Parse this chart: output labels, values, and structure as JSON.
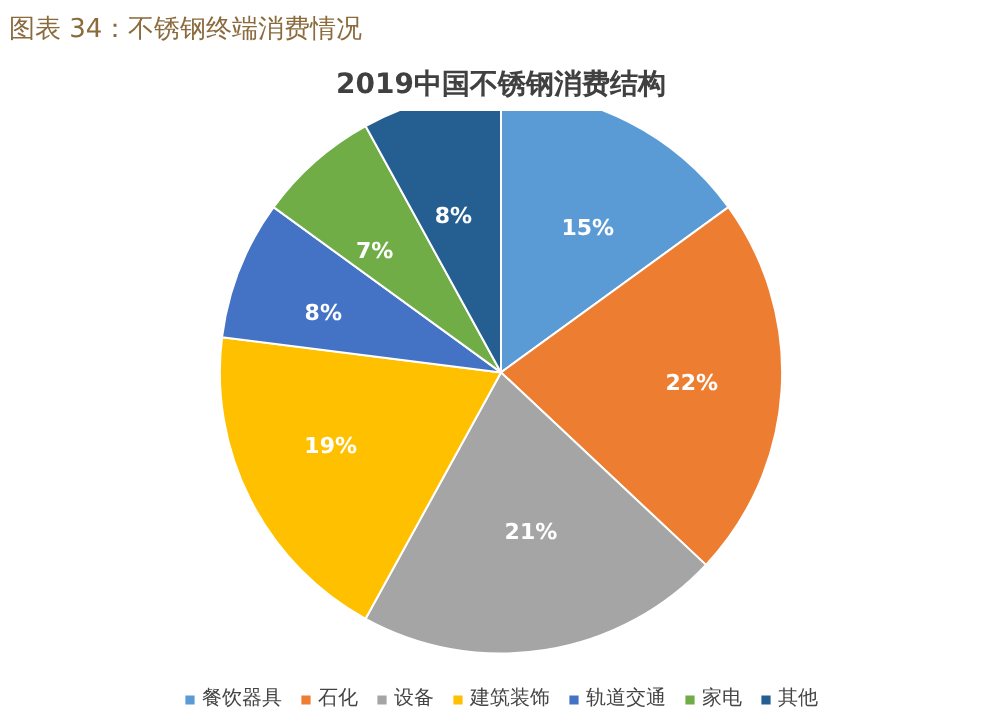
{
  "chart_data": {
    "type": "pie",
    "title": "图表 34：不锈钢终端消费情况",
    "subtitle": "2019中国不锈钢消费结构",
    "categories": [
      "餐饮器具",
      "石化",
      "设备",
      "建筑装饰",
      "轨道交通",
      "家电",
      "其他"
    ],
    "values": [
      15,
      22,
      21,
      19,
      8,
      7,
      8
    ],
    "colors": [
      "#5b9bd5",
      "#ed7d31",
      "#a5a5a5",
      "#ffc000",
      "#4472c4",
      "#70ad47",
      "#255e91"
    ],
    "value_labels": [
      "15%",
      "22%",
      "21%",
      "19%",
      "8%",
      "7%",
      "8%"
    ],
    "legend": "bottom"
  }
}
